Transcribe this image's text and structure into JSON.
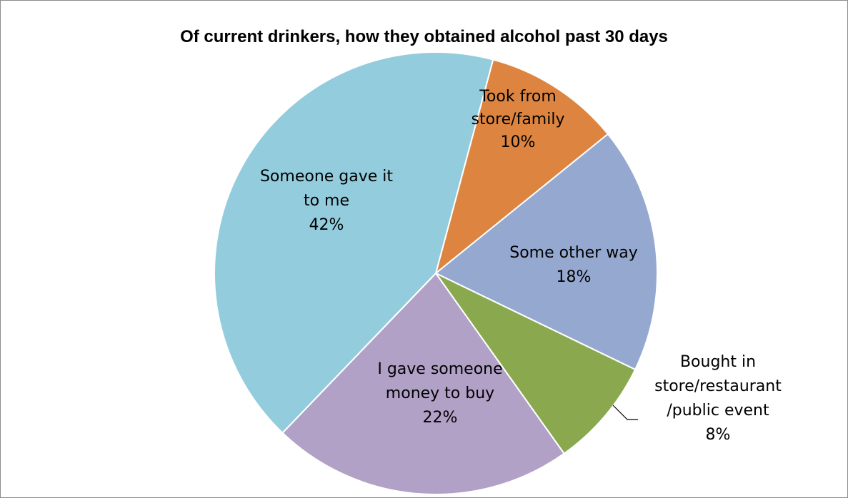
{
  "chart_data": {
    "type": "pie",
    "title": "Of current drinkers, how they obtained alcohol past 30 days",
    "slices": [
      {
        "label_lines": [
          "Took from",
          "store/family"
        ],
        "value": 10,
        "pct_label": "10%",
        "color": "#dd8540"
      },
      {
        "label_lines": [
          "Some other way"
        ],
        "value": 18,
        "pct_label": "18%",
        "color": "#95a8d0"
      },
      {
        "label_lines": [
          "Bought in",
          "store/restaurant",
          "/public event"
        ],
        "value": 8,
        "pct_label": "8%",
        "color": "#8aa84e"
      },
      {
        "label_lines": [
          "I gave someone",
          "money to buy"
        ],
        "value": 22,
        "pct_label": "22%",
        "color": "#b2a1c7"
      },
      {
        "label_lines": [
          "Someone gave it",
          "to me"
        ],
        "value": 42,
        "pct_label": "42%",
        "color": "#93cddd"
      }
    ],
    "start_angle_deg": 15
  }
}
